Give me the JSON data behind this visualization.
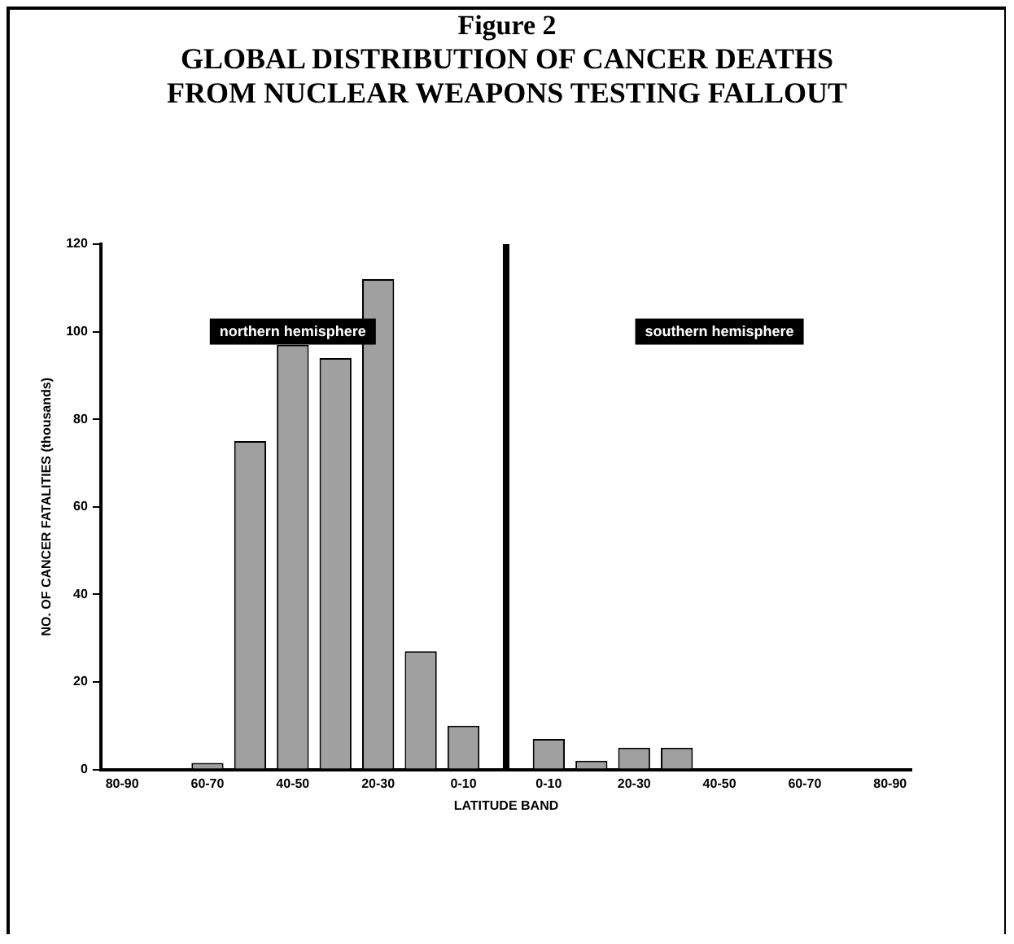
{
  "chart_data": {
    "type": "bar",
    "title": "Figure 2",
    "subtitle": "GLOBAL DISTRIBUTION OF CANCER DEATHS\nFROM NUCLEAR WEAPONS TESTING FALLOUT",
    "xlabel": "LATITUDE BAND",
    "ylabel": "NO. OF CANCER FATALITIES (thousands)",
    "categories": [
      "80-90",
      null,
      "60-70",
      null,
      "40-50",
      null,
      "20-30",
      null,
      "0-10",
      null,
      "0-10",
      null,
      "20-30",
      null,
      "40-50",
      null,
      "60-70",
      null,
      "80-90"
    ],
    "values": [
      0,
      0,
      1.5,
      75,
      97,
      94,
      112,
      27,
      10,
      null,
      7,
      2,
      5,
      5,
      0,
      0,
      0,
      0,
      0
    ],
    "color": "#a0a0a0",
    "ylim": [
      0,
      120
    ],
    "yticks": [
      0,
      20,
      40,
      60,
      80,
      100,
      120
    ],
    "ref_lines": [
      {
        "axis": "x",
        "value": null,
        "color": "#000000"
      }
    ],
    "annotations": [
      "northern hemisphere",
      "southern hemisphere"
    ]
  }
}
